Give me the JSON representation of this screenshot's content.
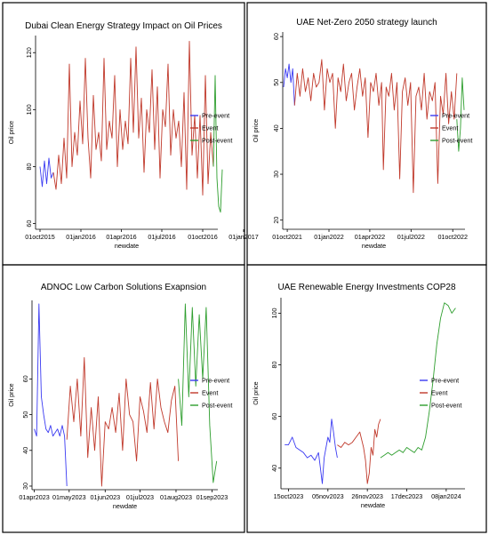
{
  "chart_data": [
    {
      "type": "line",
      "title": "Dubai Clean Energy Strategy Impact on Oil Prices",
      "xlabel": "newdate",
      "ylabel": "Oil price",
      "xlim": [
        -10,
        400
      ],
      "ylim": [
        58,
        126
      ],
      "x_ticks": [
        {
          "v": 0,
          "label": "01oct2015"
        },
        {
          "v": 92,
          "label": "01jan2016"
        },
        {
          "v": 183,
          "label": "01apr2016"
        },
        {
          "v": 274,
          "label": "01jul2016"
        },
        {
          "v": 366,
          "label": "01oct2016"
        },
        {
          "v": 458,
          "label": "01jan2017"
        }
      ],
      "y_ticks": [
        60,
        80,
        100,
        120
      ],
      "legend": {
        "placement": "right",
        "entries": [
          "Pre-event",
          "Event",
          "Post-event"
        ]
      },
      "colors": {
        "pre": "#3a3af2",
        "event": "#c0392b",
        "post": "#2e9e2e"
      },
      "series": [
        {
          "name": "Pre-event",
          "color": "#3a3af2",
          "x": [
            0,
            5,
            10,
            15,
            20,
            25,
            30
          ],
          "y": [
            80,
            73,
            82,
            74,
            83,
            76,
            78
          ]
        },
        {
          "name": "Event",
          "color": "#c0392b",
          "x": [
            30,
            36,
            42,
            48,
            54,
            60,
            66,
            72,
            78,
            84,
            90,
            96,
            102,
            108,
            114,
            120,
            126,
            132,
            138,
            144,
            150,
            156,
            162,
            168,
            174,
            180,
            186,
            192,
            198,
            204,
            210,
            216,
            222,
            228,
            234,
            240,
            246,
            252,
            258,
            264,
            270,
            276,
            282,
            288,
            294,
            300,
            306,
            312,
            318,
            324,
            330,
            336,
            342,
            348,
            354,
            360,
            366,
            372,
            378,
            384,
            390
          ],
          "y": [
            78,
            72,
            84,
            74,
            90,
            76,
            116,
            80,
            92,
            84,
            103,
            88,
            118,
            90,
            76,
            105,
            86,
            92,
            82,
            118,
            86,
            96,
            90,
            112,
            80,
            100,
            86,
            96,
            88,
            118,
            92,
            122,
            90,
            104,
            78,
            100,
            92,
            114,
            86,
            108,
            76,
            100,
            94,
            116,
            84,
            100,
            90,
            96,
            80,
            106,
            72,
            124,
            84,
            98,
            76,
            98,
            70,
            112,
            74,
            92,
            80
          ]
        },
        {
          "name": "Post-event",
          "color": "#2e9e2e",
          "x": [
            390,
            394,
            398,
            402,
            406,
            410
          ],
          "y": [
            80,
            112,
            76,
            66,
            64,
            79
          ]
        }
      ]
    },
    {
      "type": "line",
      "title": "UAE Net-Zero 2050 strategy launch",
      "xlabel": "newdate",
      "ylabel": "Oil price",
      "xlim": [
        -10,
        392
      ],
      "ylim": [
        18,
        61
      ],
      "x_ticks": [
        {
          "v": 0,
          "label": "01oct2021"
        },
        {
          "v": 92,
          "label": "01jan2022"
        },
        {
          "v": 182,
          "label": "01apr2022"
        },
        {
          "v": 273,
          "label": "01jul2022"
        },
        {
          "v": 365,
          "label": "01oct2022"
        }
      ],
      "y_ticks": [
        20,
        30,
        40,
        50,
        60
      ],
      "legend": {
        "placement": "right",
        "entries": [
          "Pre-event",
          "Event",
          "Post-event"
        ]
      },
      "colors": {
        "pre": "#3a3af2",
        "event": "#c0392b",
        "post": "#2e9e2e"
      },
      "series": [
        {
          "name": "Pre-event",
          "color": "#3a3af2",
          "x": [
            -8,
            -4,
            0,
            4,
            8,
            12,
            16
          ],
          "y": [
            49,
            53,
            51,
            54,
            50,
            53,
            45
          ]
        },
        {
          "name": "Event",
          "color": "#c0392b",
          "x": [
            16,
            22,
            28,
            34,
            40,
            46,
            52,
            58,
            64,
            70,
            76,
            82,
            88,
            94,
            100,
            106,
            112,
            118,
            124,
            130,
            136,
            142,
            148,
            154,
            160,
            166,
            172,
            178,
            184,
            190,
            196,
            202,
            208,
            212,
            218,
            224,
            230,
            236,
            242,
            248,
            254,
            260,
            266,
            272,
            278,
            284,
            290,
            296,
            302,
            308,
            314,
            320,
            326,
            332,
            338,
            344,
            350,
            356,
            362,
            368,
            374
          ],
          "y": [
            45,
            52,
            47,
            53,
            48,
            51,
            46,
            52,
            49,
            50,
            55,
            44,
            53,
            50,
            52,
            40,
            51,
            48,
            54,
            46,
            50,
            52,
            44,
            49,
            53,
            47,
            51,
            38,
            50,
            48,
            52,
            45,
            50,
            31,
            49,
            47,
            52,
            44,
            50,
            29,
            48,
            51,
            45,
            50,
            26,
            47,
            49,
            44,
            52,
            42,
            48,
            46,
            50,
            28,
            47,
            43,
            52,
            41,
            48,
            42,
            52
          ]
        },
        {
          "name": "Post-event",
          "color": "#2e9e2e",
          "x": [
            374,
            378,
            382,
            386,
            390
          ],
          "y": [
            42,
            35,
            40,
            51,
            44
          ]
        }
      ]
    },
    {
      "type": "line",
      "title": "ADNOC Low Carbon Solutions Exapnsion",
      "xlabel": "newdate",
      "ylabel": "Oil price",
      "xlim": [
        -2,
        158
      ],
      "ylim": [
        29,
        82
      ],
      "x_ticks": [
        {
          "v": 0,
          "label": "01apr2023"
        },
        {
          "v": 30,
          "label": "01may2023"
        },
        {
          "v": 61,
          "label": "01jun2023"
        },
        {
          "v": 91,
          "label": "01jul2023"
        },
        {
          "v": 122,
          "label": "01aug2023"
        },
        {
          "v": 153,
          "label": "01sep2023"
        }
      ],
      "y_ticks": [
        30,
        40,
        50,
        60
      ],
      "legend": {
        "placement": "right",
        "entries": [
          "Pre-event",
          "Event",
          "Post-event"
        ]
      },
      "colors": {
        "pre": "#3a3af2",
        "event": "#c0392b",
        "post": "#2e9e2e"
      },
      "series": [
        {
          "name": "Pre-event",
          "color": "#3a3af2",
          "x": [
            0,
            2,
            4,
            6,
            8,
            10,
            12,
            14,
            16,
            18,
            20,
            22,
            24,
            26,
            28
          ],
          "y": [
            46,
            44,
            81,
            55,
            50,
            46,
            45,
            47,
            44,
            45,
            46,
            44,
            47,
            44,
            30
          ]
        },
        {
          "name": "Event",
          "color": "#c0392b",
          "x": [
            28,
            31,
            34,
            37,
            40,
            43,
            46,
            49,
            52,
            55,
            58,
            61,
            64,
            67,
            70,
            73,
            76,
            79,
            82,
            85,
            88,
            91,
            94,
            97,
            100,
            103,
            106,
            109,
            112,
            115,
            118,
            121,
            124
          ],
          "y": [
            43,
            58,
            48,
            60,
            44,
            66,
            38,
            52,
            40,
            55,
            30,
            48,
            46,
            52,
            45,
            56,
            40,
            60,
            50,
            48,
            37,
            55,
            51,
            45,
            59,
            46,
            60,
            52,
            48,
            45,
            54,
            58,
            37
          ]
        },
        {
          "name": "Post-event",
          "color": "#2e9e2e",
          "x": [
            124,
            127,
            130,
            133,
            136,
            139,
            142,
            145,
            148,
            151,
            154,
            157
          ],
          "y": [
            60,
            47,
            81,
            55,
            80,
            58,
            78,
            60,
            80,
            47,
            31,
            37
          ]
        }
      ]
    },
    {
      "type": "line",
      "title": "UAE Renewable Energy Investments COP28",
      "xlabel": "newdate",
      "ylabel": "Oil price",
      "xlim": [
        -4,
        94
      ],
      "ylim": [
        32,
        106
      ],
      "x_ticks": [
        {
          "v": 0,
          "label": "15oct2023"
        },
        {
          "v": 21,
          "label": "05nov2023"
        },
        {
          "v": 42,
          "label": "26nov2023"
        },
        {
          "v": 63,
          "label": "17dec2023"
        },
        {
          "v": 84,
          "label": "08jan2024"
        }
      ],
      "y_ticks": [
        40,
        60,
        80,
        100
      ],
      "legend": {
        "placement": "right",
        "entries": [
          "Pre-event",
          "Event",
          "Post-event"
        ]
      },
      "colors": {
        "pre": "#3a3af2",
        "event": "#c0392b",
        "post": "#2e9e2e"
      },
      "series": [
        {
          "name": "Pre-event",
          "color": "#3a3af2",
          "x": [
            -2,
            0,
            2,
            4,
            6,
            8,
            10,
            12,
            14,
            16,
            17,
            18,
            19,
            20,
            21,
            22,
            23,
            24,
            25,
            26
          ],
          "y": [
            49,
            49,
            52,
            48,
            47,
            46,
            44,
            45,
            43,
            46,
            40,
            34,
            44,
            48,
            52,
            50,
            59,
            54,
            48,
            44
          ]
        },
        {
          "name": "Event",
          "color": "#c0392b",
          "x": [
            26,
            28,
            30,
            32,
            34,
            36,
            38,
            40,
            41,
            42,
            43,
            44,
            45,
            46,
            47,
            48,
            49
          ],
          "y": [
            49,
            48,
            50,
            49,
            50,
            52,
            54,
            48,
            43,
            34,
            38,
            48,
            45,
            55,
            52,
            57,
            59
          ]
        },
        {
          "name": "Post-event",
          "color": "#2e9e2e",
          "x": [
            49,
            51,
            53,
            55,
            57,
            59,
            61,
            63,
            65,
            67,
            69,
            71,
            73,
            75,
            77,
            79,
            81,
            83,
            85,
            87,
            89
          ],
          "y": [
            44,
            45,
            46,
            45,
            46,
            47,
            46,
            48,
            47,
            46,
            48,
            47,
            52,
            62,
            74,
            88,
            98,
            104,
            103,
            100,
            102
          ]
        }
      ]
    }
  ]
}
